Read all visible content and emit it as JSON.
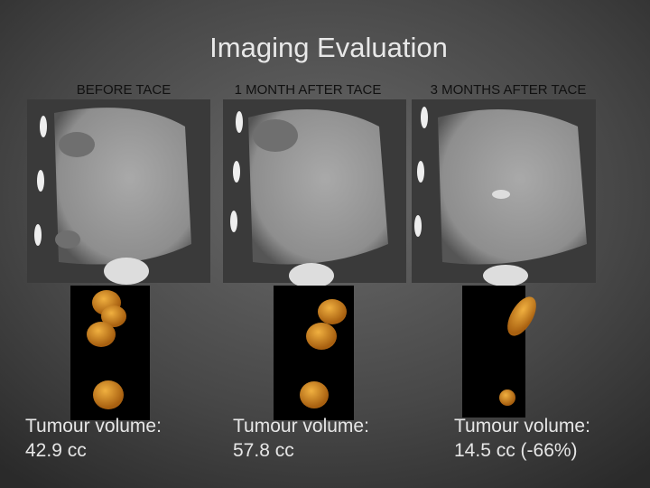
{
  "title": "Imaging Evaluation",
  "panels": [
    {
      "heading": "BEFORE TACE",
      "volume_label": "Tumour volume:",
      "volume": "42.9 cc"
    },
    {
      "heading": "1 MONTH AFTER TACE",
      "volume_label": "Tumour volume:",
      "volume": "57.8 cc"
    },
    {
      "heading": "3 MONTHS AFTER TACE",
      "volume_label": "Tumour volume:",
      "volume": "14.5 cc (-66%)"
    }
  ]
}
